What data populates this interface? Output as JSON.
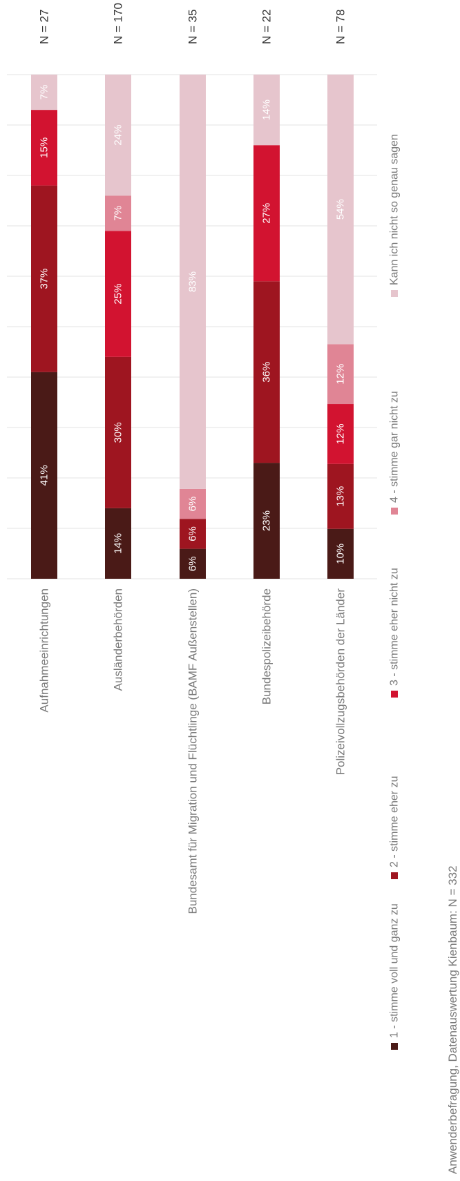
{
  "chart_data": {
    "type": "bar",
    "stacked": true,
    "orientation": "vertical-stack-rotated",
    "ylim": [
      0,
      100
    ],
    "grid": true,
    "legend_position": "bottom",
    "categories": [
      "Aufnahmeeinrichtungen",
      "Ausländerbehörden",
      "Bundesamt für Migration und Flüchtlinge (BAMF Außenstellen)",
      "Bundespolizeibehörde",
      "Polizeivollzugsbehörden der Länder"
    ],
    "n_labels": [
      "N = 27",
      "N = 170",
      "N = 35",
      "N = 22",
      "N = 78"
    ],
    "series": [
      {
        "name": "1 - stimme voll und ganz zu",
        "color": "#4a1a17",
        "values": [
          41,
          14,
          6,
          23,
          10
        ],
        "labels": [
          "41%",
          "14%",
          "6%",
          "23%",
          "10%"
        ]
      },
      {
        "name": "2 - stimme eher zu",
        "color": "#9e1520",
        "values": [
          37,
          30,
          6,
          36,
          13
        ],
        "labels": [
          "37%",
          "30%",
          "6%",
          "36%",
          "13%"
        ]
      },
      {
        "name": "3 - stimme eher nicht zu",
        "color": "#d21330",
        "values": [
          15,
          25,
          0,
          27,
          12
        ],
        "labels": [
          "15%",
          "25%",
          "",
          "27%",
          "12%"
        ]
      },
      {
        "name": "4 - stimme gar nicht zu",
        "color": "#e08595",
        "values": [
          0,
          7,
          6,
          0,
          12
        ],
        "labels": [
          "",
          "7%",
          "6%",
          "",
          "12%"
        ]
      },
      {
        "name": "Kann ich nicht so genau sagen",
        "color": "#e6c5cd",
        "values": [
          7,
          24,
          83,
          14,
          54
        ],
        "labels": [
          "7%",
          "24%",
          "83%",
          "14%",
          "54%"
        ]
      }
    ]
  },
  "source_note": "Anwenderbefragung, Datenauswertung Kienbaum: N = 332"
}
